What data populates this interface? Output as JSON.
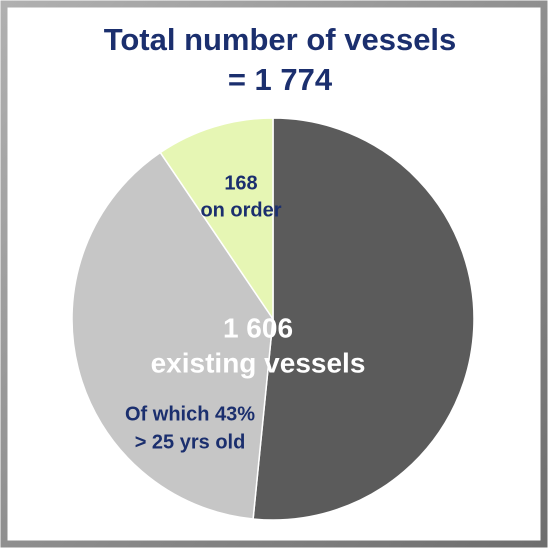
{
  "chart_data": {
    "type": "pie",
    "title": "Total number of vessels",
    "subtitle": "= 1 774",
    "values": [
      915,
      691,
      168
    ],
    "colors": [
      "#5b5b5b",
      "#c6c6c6",
      "#e6f6b4"
    ],
    "annotations": [
      {
        "lines": [
          "168",
          "on order"
        ],
        "color": "#1b2f6e"
      },
      {
        "lines": [
          "1 606",
          "existing vessels"
        ],
        "color": "#ffffff"
      },
      {
        "lines": [
          "Of which 43%",
          "> 25 yrs old"
        ],
        "color": "#1b2f6e"
      }
    ]
  }
}
